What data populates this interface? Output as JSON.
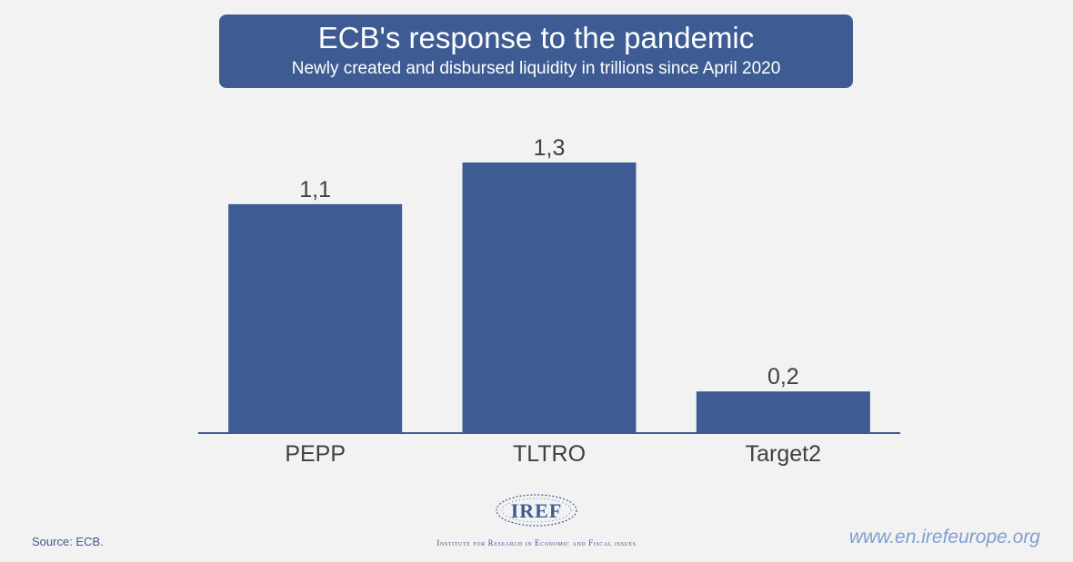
{
  "chart_data": {
    "type": "bar",
    "title": "ECB's response to the pandemic",
    "subtitle": "Newly created and disbursed liquidity in trillions since April 2020",
    "categories": [
      "PEPP",
      "TLTRO",
      "Target2"
    ],
    "values": [
      1.1,
      1.3,
      0.2
    ],
    "value_labels": [
      "1,1",
      "1,3",
      "0,2"
    ],
    "xlabel": "",
    "ylabel": "",
    "ylim": [
      0,
      1.3
    ],
    "grid": false,
    "legend": "none",
    "bar_color": "#3e5c93"
  },
  "footer": {
    "source": "Source: ECB.",
    "logo_text": "IREF",
    "institute": "Institute for Research in Economic and Fiscal issues",
    "website": "www.en.irefeurope.org"
  },
  "colors": {
    "accent": "#3e5c93",
    "background": "#f2f2f2",
    "link": "#7f9fd1"
  }
}
